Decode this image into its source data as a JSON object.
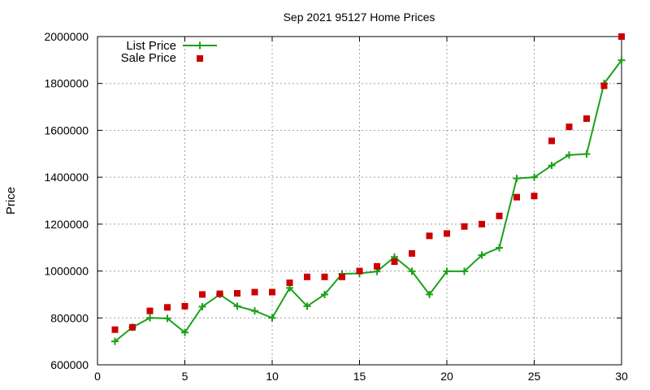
{
  "chart_data": {
    "type": "line",
    "title": "Sep 2021 95127 Home Prices",
    "xlabel": "",
    "ylabel": "Price",
    "xlim": [
      0,
      30
    ],
    "ylim": [
      600000,
      2000000
    ],
    "x_ticks": [
      0,
      5,
      10,
      15,
      20,
      25,
      30
    ],
    "y_ticks": [
      600000,
      800000,
      1000000,
      1200000,
      1400000,
      1600000,
      1800000,
      2000000
    ],
    "grid": true,
    "legend_position": "top-left",
    "x": [
      1,
      2,
      3,
      4,
      5,
      6,
      7,
      8,
      9,
      10,
      11,
      12,
      13,
      14,
      15,
      16,
      17,
      18,
      19,
      20,
      21,
      22,
      23,
      24,
      25,
      26,
      27,
      28,
      29,
      30
    ],
    "series": [
      {
        "name": "List Price",
        "style": "line-with-plus-markers",
        "color": "#1aa11a",
        "values": [
          700000,
          760000,
          800000,
          798000,
          738000,
          848000,
          900000,
          850000,
          830000,
          800000,
          928000,
          850000,
          900000,
          988000,
          990000,
          998000,
          1060000,
          999000,
          900000,
          999000,
          999000,
          1068000,
          1099000,
          1395000,
          1400000,
          1450000,
          1495000,
          1499000,
          1800000,
          1899000
        ]
      },
      {
        "name": "Sale Price",
        "style": "square-markers",
        "color": "#cc0000",
        "values": [
          750000,
          760000,
          830000,
          845000,
          850000,
          900000,
          903000,
          905000,
          910000,
          910000,
          950000,
          975000,
          975000,
          975000,
          1000000,
          1020000,
          1040000,
          1075000,
          1150000,
          1160000,
          1190000,
          1200000,
          1235000,
          1315000,
          1320000,
          1555000,
          1615000,
          1650000,
          1790000,
          2000000
        ]
      }
    ]
  }
}
